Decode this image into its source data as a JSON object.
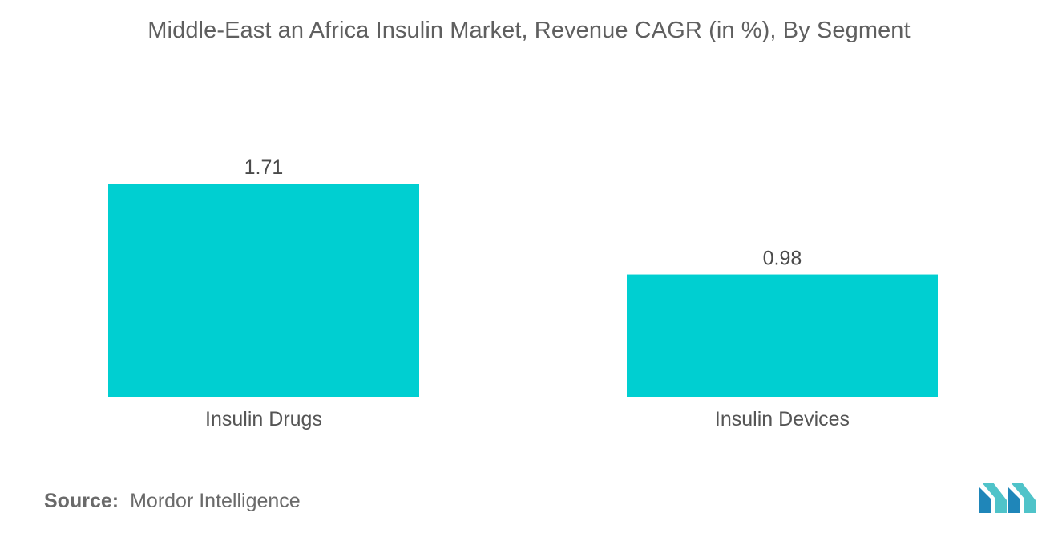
{
  "chart_data": {
    "type": "bar",
    "title": "Middle-East an Africa Insulin Market, Revenue CAGR (in %), By Segment",
    "categories": [
      "Insulin Drugs",
      "Insulin Devices"
    ],
    "values": [
      1.71,
      0.98
    ],
    "value_labels": [
      "1.71",
      "0.98"
    ],
    "xlabel": "",
    "ylabel": "",
    "ylim": [
      0,
      1.71
    ],
    "grid": false,
    "legend": "none",
    "bar_color": "#00cfd1"
  },
  "source": {
    "label": "Source:",
    "text": "Mordor Intelligence"
  },
  "logo": {
    "icon": "mordor-intelligence-logo",
    "colors": [
      "#1f86b9",
      "#4fc3c9"
    ]
  }
}
